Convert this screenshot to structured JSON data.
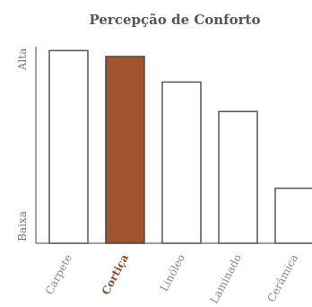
{
  "chart_data": {
    "type": "bar",
    "title": "Percepção de Conforto",
    "xlabel": "",
    "ylabel": "",
    "y_tick_labels": [
      "Baixa",
      "Alta"
    ],
    "ylim": [
      0,
      100
    ],
    "categories": [
      "Carpete",
      "Cortiça",
      "Linóleo",
      "Laminado",
      "Cerâmica"
    ],
    "values": [
      98,
      95,
      82,
      67,
      28
    ],
    "highlight_index": 1,
    "grid": false,
    "legend": "none"
  },
  "colors": {
    "highlight_fill": "#a0552f",
    "highlight_stroke": "#4a4a4a",
    "bar_fill": "#ffffff",
    "bar_stroke": "#555555",
    "axis": "#666666",
    "title": "#555555",
    "highlight_label": "#8e4f2c",
    "label": "#888888"
  }
}
